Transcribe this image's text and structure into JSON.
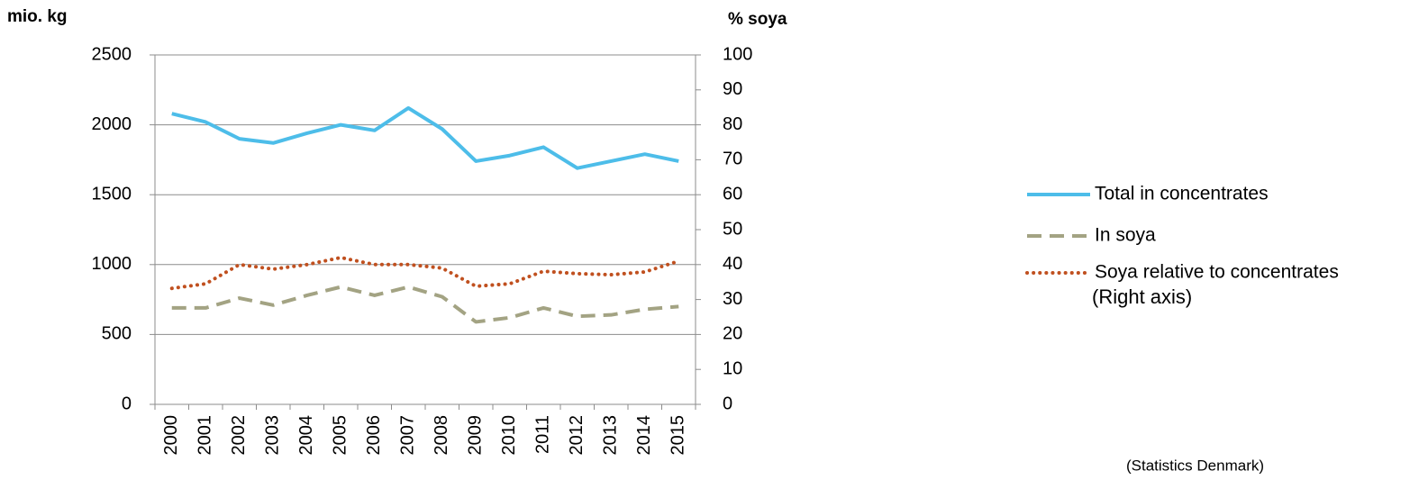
{
  "chart_data": {
    "type": "line",
    "y_label": "mio. kg",
    "y2_label": "% soya",
    "categories": [
      "2000",
      "2001",
      "2002",
      "2003",
      "2004",
      "2005",
      "2006",
      "2007",
      "2008",
      "2009",
      "2010",
      "2011",
      "2012",
      "2013",
      "2014",
      "2015"
    ],
    "series": [
      {
        "name": "Total in concentrates",
        "color": "#4dbde9",
        "style": "solid",
        "values": [
          2080,
          2020,
          1900,
          1870,
          1940,
          2000,
          1960,
          2120,
          1970,
          1740,
          1780,
          1840,
          1690,
          1740,
          1790,
          1740
        ]
      },
      {
        "name": "In soya",
        "color": "#a3a383",
        "style": "dashed",
        "values": [
          690,
          690,
          760,
          710,
          780,
          840,
          780,
          840,
          770,
          590,
          620,
          690,
          630,
          640,
          680,
          700
        ]
      },
      {
        "name": "Soya relative to concentrates",
        "color": "#c0501f",
        "style": "dotted",
        "axis": "y2",
        "values": [
          33.2,
          34.5,
          40,
          38.7,
          40,
          42,
          40,
          40,
          39,
          33.8,
          34.5,
          38.1,
          37.4,
          37.1,
          37.9,
          41
        ]
      }
    ],
    "ylim": [
      0,
      2500
    ],
    "yticks": [
      0,
      500,
      1000,
      1500,
      2000,
      2500
    ],
    "y2lim": [
      0,
      100
    ],
    "y2ticks": [
      0,
      10,
      20,
      30,
      40,
      50,
      60,
      70,
      80,
      90,
      100
    ],
    "grid": true,
    "annotations": [
      "(Right axis)",
      "(Statistics Denmark)"
    ]
  }
}
